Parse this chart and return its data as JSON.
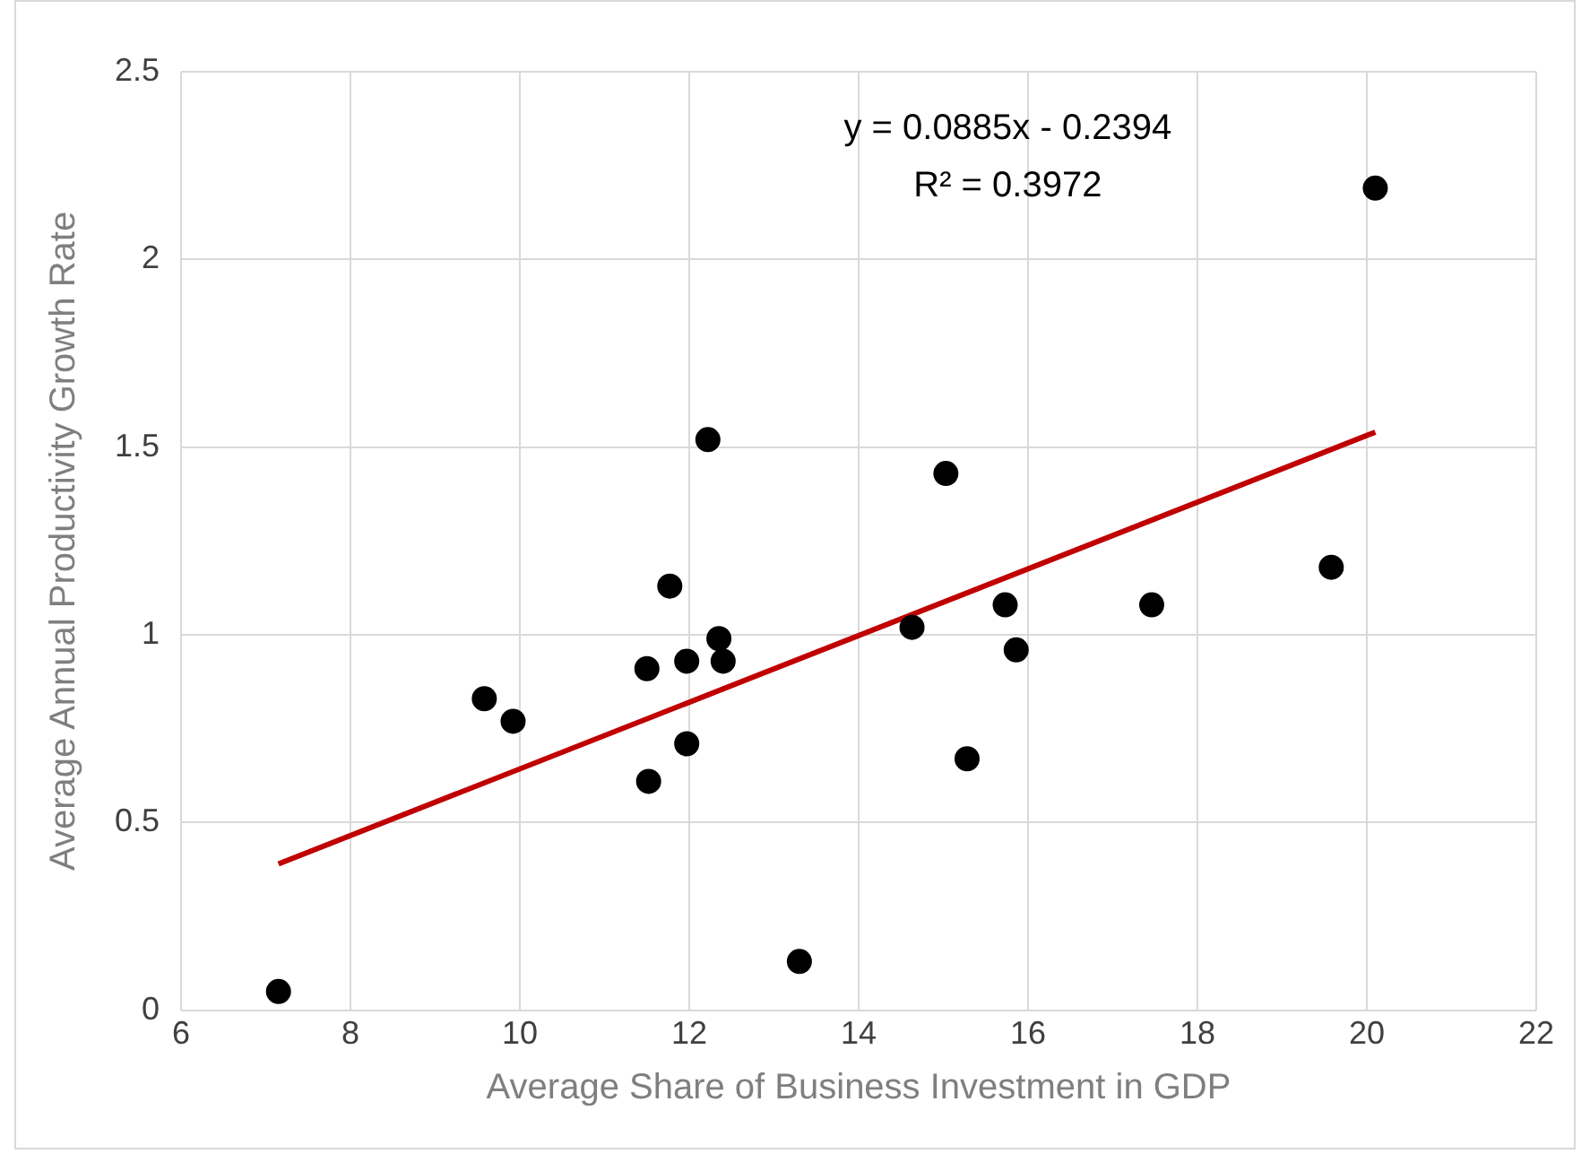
{
  "chart_data": {
    "type": "scatter",
    "xlabel": "Average Share of Business Investment in GDP",
    "ylabel": "Average Annual Productivity Growth Rate",
    "annotations": [
      "y = 0.0885x - 0.2394",
      "R² = 0.3972"
    ],
    "xlim": [
      6,
      22
    ],
    "xticks": [
      6,
      8,
      10,
      12,
      14,
      16,
      18,
      20,
      22
    ],
    "ylim": [
      0,
      2.5
    ],
    "yticks": [
      0,
      0.5,
      1,
      1.5,
      2,
      2.5
    ],
    "grid": true,
    "legend": false,
    "marker": "circle",
    "series": [
      {
        "color": "#000000",
        "x": [
          7.15,
          9.58,
          9.92,
          11.5,
          11.52,
          11.77,
          11.97,
          11.97,
          12.22,
          12.35,
          12.4,
          13.3,
          14.63,
          15.03,
          15.28,
          15.73,
          15.86,
          17.46,
          19.58,
          20.1
        ],
        "values": [
          0.05,
          0.83,
          0.77,
          0.91,
          0.61,
          1.13,
          0.93,
          0.71,
          1.52,
          0.99,
          0.93,
          0.13,
          1.02,
          1.43,
          0.67,
          1.08,
          0.96,
          1.08,
          1.18,
          2.19
        ]
      },
      {
        "type": "line",
        "marker": "none",
        "color": "#c00000",
        "x": [
          7.15,
          20.1
        ],
        "values": [
          0.39,
          1.54
        ]
      }
    ]
  }
}
